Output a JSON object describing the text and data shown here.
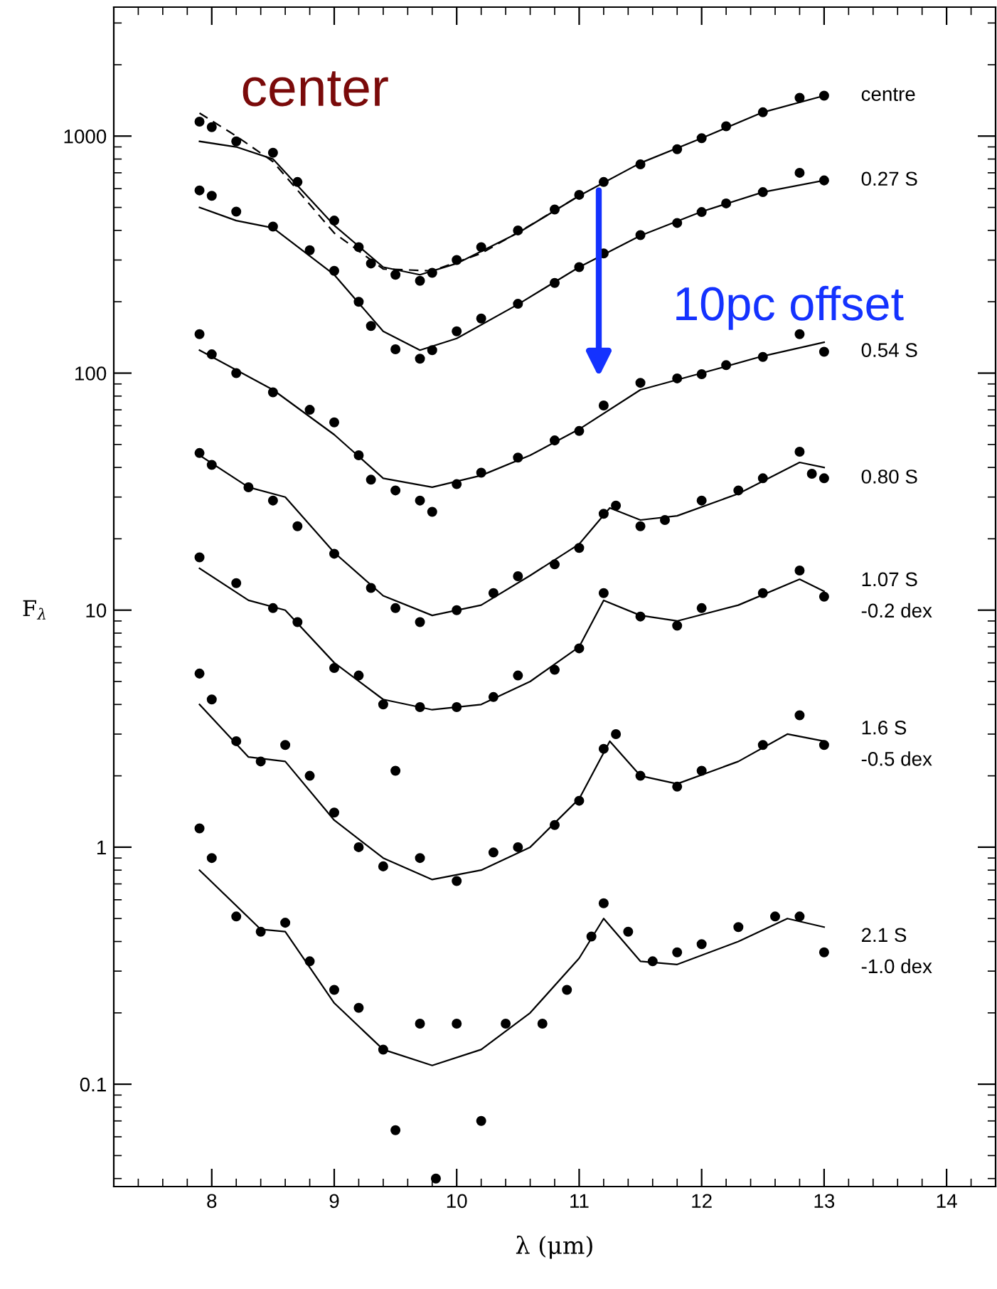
{
  "chart_data": {
    "type": "scatter",
    "xlabel": "λ (μm)",
    "ylabel": "F$_{λ}$",
    "log": "y",
    "xlim": [
      7.2,
      14.4
    ],
    "xticks": [
      8,
      9,
      10,
      11,
      12,
      13,
      14
    ],
    "ylim": [
      0.037,
      3500
    ],
    "yticks": [
      0.1,
      1,
      10,
      100,
      1000
    ],
    "grid": false,
    "legend": false,
    "annotations": [
      "center",
      "10pc offset"
    ],
    "marker": "circle",
    "series": [
      {
        "name": "centre",
        "color": "#000000",
        "x": [
          7.9,
          8.0,
          8.2,
          8.5,
          8.7,
          9.0,
          9.2,
          9.3,
          9.5,
          9.7,
          9.8,
          10.0,
          10.2,
          10.5,
          10.8,
          11.0,
          11.2,
          11.5,
          11.8,
          12.0,
          12.2,
          12.5,
          12.8,
          13.0
        ],
        "values": [
          1150,
          1090,
          950,
          850,
          640,
          440,
          340,
          290,
          260,
          245,
          265,
          300,
          340,
          400,
          490,
          565,
          640,
          760,
          880,
          980,
          1100,
          1260,
          1450,
          1480
        ]
      },
      {
        "type": "line",
        "marker": "none",
        "color": "#000000",
        "x": [
          7.9,
          8.2,
          8.5,
          9.0,
          9.4,
          9.7,
          10.0,
          10.5,
          11.0,
          11.5,
          12.0,
          12.5,
          13.0
        ],
        "values": [
          950,
          900,
          800,
          420,
          280,
          260,
          290,
          390,
          560,
          770,
          980,
          1260,
          1480
        ]
      },
      {
        "type": "line",
        "marker": "none",
        "line_style": "dashed",
        "color": "#000000",
        "x": [
          7.9,
          8.2,
          8.5,
          9.0,
          9.4,
          9.8,
          10.2,
          10.6,
          11.0
        ],
        "values": [
          1250,
          1000,
          780,
          390,
          275,
          270,
          320,
          420,
          560
        ]
      },
      {
        "name": "0.27 S",
        "color": "#000000",
        "x": [
          7.9,
          8.0,
          8.2,
          8.5,
          8.8,
          9.0,
          9.2,
          9.3,
          9.5,
          9.7,
          9.8,
          10.0,
          10.2,
          10.5,
          10.8,
          11.0,
          11.2,
          11.5,
          11.8,
          12.0,
          12.2,
          12.5,
          12.8,
          13.0
        ],
        "values": [
          590,
          560,
          480,
          415,
          330,
          270,
          200,
          158,
          126,
          115,
          125,
          150,
          170,
          196,
          240,
          280,
          320,
          382,
          430,
          478,
          520,
          580,
          700,
          650
        ]
      },
      {
        "type": "line",
        "marker": "none",
        "color": "#000000",
        "x": [
          7.9,
          8.2,
          8.5,
          9.0,
          9.4,
          9.7,
          10.0,
          10.5,
          11.0,
          11.5,
          12.0,
          12.5,
          13.0
        ],
        "values": [
          500,
          440,
          410,
          260,
          150,
          125,
          140,
          195,
          280,
          380,
          480,
          580,
          650
        ]
      },
      {
        "name": "0.54 S",
        "color": "#000000",
        "x": [
          7.9,
          8.0,
          8.2,
          8.5,
          8.8,
          9.0,
          9.2,
          9.3,
          9.5,
          9.7,
          9.8,
          10.0,
          10.2,
          10.5,
          10.8,
          11.0,
          11.2,
          11.5,
          11.8,
          12.0,
          12.2,
          12.5,
          12.8,
          13.0
        ],
        "values": [
          146,
          120,
          100,
          83,
          70,
          62,
          45,
          35.5,
          32,
          29,
          26,
          34,
          38,
          44,
          52,
          57,
          73,
          91,
          95,
          99,
          108,
          117,
          146,
          123
        ]
      },
      {
        "type": "line",
        "marker": "none",
        "color": "#000000",
        "x": [
          7.9,
          8.5,
          9.0,
          9.4,
          9.8,
          10.2,
          10.6,
          11.0,
          11.5,
          12.0,
          12.5,
          13.0
        ],
        "values": [
          125,
          85,
          55,
          36,
          33,
          37,
          45,
          58,
          85,
          100,
          118,
          135
        ]
      },
      {
        "name": "0.80 S",
        "color": "#000000",
        "x": [
          7.9,
          8.0,
          8.3,
          8.5,
          8.7,
          9.0,
          9.3,
          9.5,
          9.7,
          10.0,
          10.3,
          10.5,
          10.8,
          11.0,
          11.2,
          11.3,
          11.5,
          11.7,
          12.0,
          12.3,
          12.5,
          12.8,
          12.9,
          13.0
        ],
        "values": [
          46,
          41,
          33,
          29,
          22.6,
          17.3,
          12.4,
          10.2,
          8.9,
          10,
          11.8,
          13.9,
          15.6,
          18.3,
          25.5,
          27.6,
          22.6,
          24,
          29,
          32,
          36,
          46.6,
          37.6,
          36
        ]
      },
      {
        "type": "line",
        "marker": "none",
        "color": "#000000",
        "x": [
          7.9,
          8.3,
          8.6,
          9.0,
          9.4,
          9.8,
          10.2,
          10.6,
          11.0,
          11.25,
          11.5,
          11.8,
          12.3,
          12.8,
          13.0
        ],
        "values": [
          45,
          33,
          30,
          17.5,
          11.5,
          9.5,
          10.5,
          14,
          19,
          27,
          24,
          25,
          31,
          42,
          40
        ]
      },
      {
        "name": "1.07 S\n-0.2 dex",
        "color": "#000000",
        "x": [
          7.9,
          8.2,
          8.5,
          8.7,
          9.0,
          9.2,
          9.4,
          9.5,
          9.7,
          10.0,
          10.3,
          10.5,
          10.8,
          11.0,
          11.2,
          11.5,
          11.8,
          12.0,
          12.5,
          12.8,
          13.0
        ],
        "values": [
          16.7,
          13,
          10.2,
          8.9,
          5.7,
          5.3,
          4.0,
          2.1,
          3.9,
          3.9,
          4.3,
          5.3,
          5.6,
          6.9,
          11.8,
          9.4,
          8.6,
          10.2,
          11.8,
          14.7,
          11.4
        ]
      },
      {
        "type": "line",
        "marker": "none",
        "color": "#000000",
        "x": [
          7.9,
          8.3,
          8.6,
          9.0,
          9.4,
          9.8,
          10.2,
          10.6,
          11.0,
          11.2,
          11.5,
          11.8,
          12.3,
          12.8,
          13.0
        ],
        "values": [
          15,
          11,
          10,
          6,
          4.2,
          3.8,
          4.0,
          5.0,
          7.0,
          11,
          9.5,
          9.0,
          10.5,
          13.5,
          12
        ]
      },
      {
        "name": "1.6 S\n-0.5 dex",
        "color": "#000000",
        "x": [
          7.9,
          8.0,
          8.2,
          8.4,
          8.6,
          8.8,
          9.0,
          9.2,
          9.4,
          9.7,
          10.0,
          10.3,
          10.5,
          10.8,
          11.0,
          11.2,
          11.3,
          11.5,
          11.8,
          12.0,
          12.5,
          12.8,
          13.0
        ],
        "values": [
          5.4,
          4.2,
          2.8,
          2.3,
          2.7,
          2.0,
          1.4,
          1.0,
          0.83,
          0.9,
          0.72,
          0.95,
          1.0,
          1.24,
          1.57,
          2.6,
          3.0,
          2.0,
          1.8,
          2.1,
          2.7,
          3.6,
          2.7
        ]
      },
      {
        "type": "line",
        "marker": "none",
        "color": "#000000",
        "x": [
          7.9,
          8.3,
          8.6,
          9.0,
          9.4,
          9.8,
          10.2,
          10.6,
          11.0,
          11.25,
          11.5,
          11.8,
          12.3,
          12.7,
          13.0
        ],
        "values": [
          4.0,
          2.4,
          2.3,
          1.3,
          0.9,
          0.73,
          0.8,
          1.0,
          1.6,
          2.8,
          2.0,
          1.85,
          2.3,
          3.0,
          2.8
        ]
      },
      {
        "name": "2.1 S\n-1.0 dex",
        "color": "#000000",
        "x": [
          7.9,
          8.0,
          8.2,
          8.4,
          8.6,
          8.8,
          9.0,
          9.2,
          9.4,
          9.5,
          9.7,
          9.83,
          10.0,
          10.2,
          10.4,
          10.7,
          10.9,
          11.1,
          11.2,
          11.4,
          11.6,
          11.8,
          12.0,
          12.3,
          12.6,
          12.8,
          13.0
        ],
        "values": [
          1.2,
          0.9,
          0.51,
          0.44,
          0.48,
          0.33,
          0.25,
          0.21,
          0.14,
          0.064,
          0.18,
          0.04,
          0.18,
          0.07,
          0.18,
          0.18,
          0.25,
          0.42,
          0.58,
          0.44,
          0.33,
          0.36,
          0.39,
          0.46,
          0.51,
          0.51,
          0.36
        ]
      },
      {
        "type": "line",
        "marker": "none",
        "color": "#000000",
        "x": [
          7.9,
          8.4,
          8.6,
          9.0,
          9.4,
          9.8,
          10.2,
          10.6,
          11.0,
          11.2,
          11.5,
          11.8,
          12.3,
          12.7,
          13.0
        ],
        "values": [
          0.8,
          0.45,
          0.44,
          0.22,
          0.14,
          0.12,
          0.14,
          0.2,
          0.34,
          0.5,
          0.33,
          0.32,
          0.4,
          0.5,
          0.46
        ]
      }
    ]
  }
}
